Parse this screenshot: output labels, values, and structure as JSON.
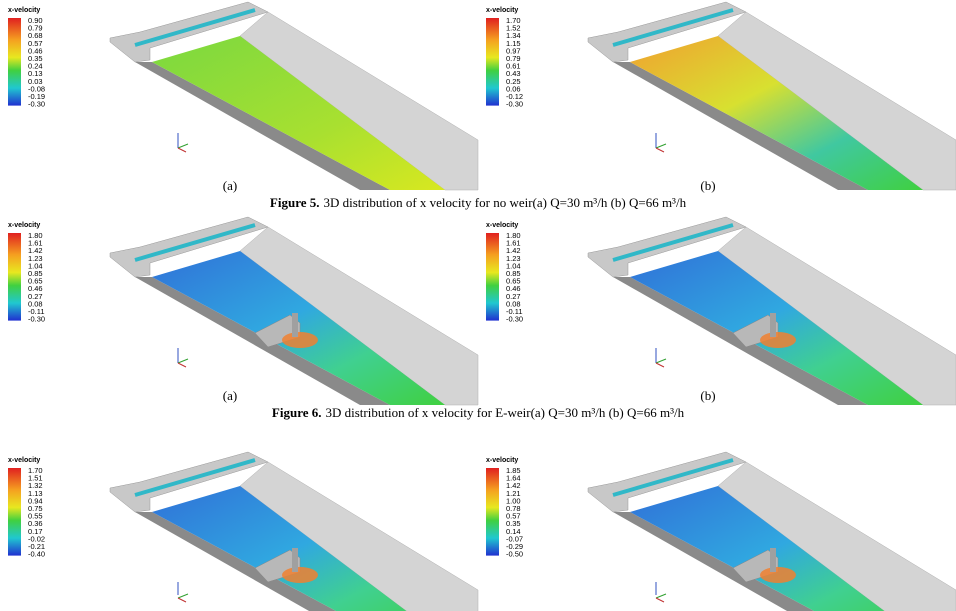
{
  "figures": [
    {
      "panels": [
        {
          "legend_title": "x-velocity",
          "ticks": [
            "0.90",
            "0.79",
            "0.68",
            "0.57",
            "0.46",
            "0.35",
            "0.24",
            "0.13",
            "0.03",
            "-0.08",
            "-0.19",
            "-0.30"
          ],
          "label": "(a)"
        },
        {
          "legend_title": "x-velocity",
          "ticks": [
            "1.70",
            "1.52",
            "1.34",
            "1.15",
            "0.97",
            "0.79",
            "0.61",
            "0.43",
            "0.25",
            "0.06",
            "-0.12",
            "-0.30"
          ],
          "label": "(b)"
        }
      ],
      "caption": {
        "number": "Figure 5.",
        "text": "3D distribution of x velocity for no weir(a) Q=30 m³/h (b) Q=66 m³/h"
      }
    },
    {
      "panels": [
        {
          "legend_title": "x-velocity",
          "ticks": [
            "1.80",
            "1.61",
            "1.42",
            "1.23",
            "1.04",
            "0.85",
            "0.65",
            "0.46",
            "0.27",
            "0.08",
            "-0.11",
            "-0.30"
          ],
          "label": "(a)"
        },
        {
          "legend_title": "x-velocity",
          "ticks": [
            "1.80",
            "1.61",
            "1.42",
            "1.23",
            "1.04",
            "0.85",
            "0.65",
            "0.46",
            "0.27",
            "0.08",
            "-0.11",
            "-0.30"
          ],
          "label": "(b)"
        }
      ],
      "caption": {
        "number": "Figure 6.",
        "text": "3D distribution of x velocity for E-weir(a) Q=30 m³/h (b) Q=66 m³/h"
      }
    },
    {
      "panels": [
        {
          "legend_title": "x-velocity",
          "ticks": [
            "1.70",
            "1.51",
            "1.32",
            "1.13",
            "0.94",
            "0.75",
            "0.55",
            "0.36",
            "0.17",
            "-0.02",
            "-0.21",
            "-0.40"
          ]
        },
        {
          "legend_title": "x-velocity",
          "ticks": [
            "1.85",
            "1.64",
            "1.42",
            "1.21",
            "1.00",
            "0.78",
            "0.57",
            "0.35",
            "0.14",
            "-0.07",
            "-0.29",
            "-0.50"
          ]
        }
      ]
    }
  ]
}
